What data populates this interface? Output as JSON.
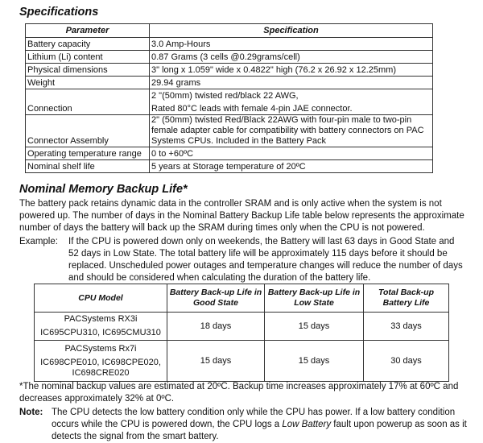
{
  "specifications": {
    "title": "Specifications",
    "headers": [
      "Parameter",
      "Specification"
    ],
    "rows": [
      {
        "param": "Battery capacity",
        "spec": [
          "3.0 Amp-Hours"
        ]
      },
      {
        "param": "Lithium (Li) content",
        "spec": [
          " 0.87  Grams (3 cells @0.29grams/cell)"
        ]
      },
      {
        "param": "Physical dimensions",
        "spec": [
          "3\" long x 1.059\" wide x 0.4822\" high (76.2 x 26.92 x 12.25mm)"
        ]
      },
      {
        "param": "Weight",
        "spec": [
          " 29.94 grams"
        ]
      },
      {
        "param": "Connection",
        "spec": [
          "2 \"(50mm) twisted red/black 22 AWG,",
          "Rated 80°C leads with female 4-pin JAE connector."
        ]
      },
      {
        "param": "Connector Assembly",
        "spec": [
          "2\" (50mm) twisted Red/Black 22AWG with four-pin male to two-pin female adapter cable for compatibility with battery connectors on PAC Systems CPUs. Included in the Battery Pack"
        ]
      },
      {
        "param": "Operating temperature range",
        "spec": [
          " 0 to +60ºC"
        ]
      },
      {
        "param": "Nominal shelf life",
        "spec": [
          " 5 years at Storage temperature of 20ºC"
        ]
      }
    ]
  },
  "backup": {
    "title": "Nominal Memory Backup Life*",
    "intro": "The battery pack retains dynamic data in the controller SRAM and is only active when the system is not powered up. The number of days in the Nominal Battery Backup Life table below represents the approximate number of days the battery will back up the SRAM during times only when the CPU is not powered.",
    "example_label": "Example:",
    "example_text": "If the CPU is powered down only on weekends, the Battery will last 63 days in Good State and 52 days in Low State. The total battery life will be approximately 115 days before it should be replaced. Unscheduled power outages and temperature changes will reduce the number of days and should be considered when calculating the duration of the battery life.",
    "headers": [
      "CPU Model",
      "Battery Back-up Life in Good State",
      "Battery Back-up Life in Low State",
      "Total Back-up Battery Life"
    ],
    "rows": [
      {
        "model": [
          "PACSystems RX3i",
          "IC695CPU310, IC695CMU310"
        ],
        "good": "18 days",
        "low": "15 days",
        "total": "33 days"
      },
      {
        "model": [
          "PACSystems Rx7i",
          "IC698CPE010, IC698CPE020, IC698CRE020"
        ],
        "good": "15 days",
        "low": "15 days",
        "total": "30 days"
      }
    ],
    "footnote": "*The nominal backup values are estimated at 20ºC. Backup time increases approximately 17% at 60ºC and decreases approximately 32% at 0ºC.",
    "note_label": "Note:",
    "note_pre": "The CPU detects the low battery condition only while the CPU has power. If a low battery condition occurs while the CPU is powered down, the CPU logs a ",
    "note_em": "Low Battery",
    "note_post": " fault upon powerup as soon as it detects the signal from the smart battery."
  }
}
